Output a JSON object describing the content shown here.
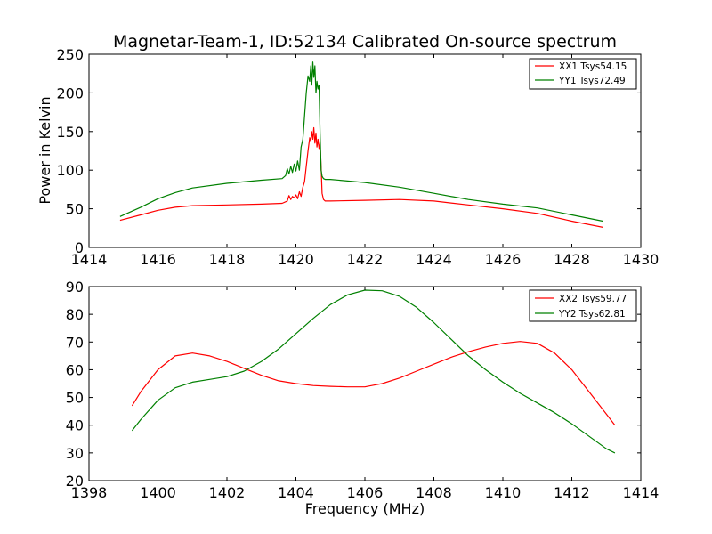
{
  "chart_data": [
    {
      "type": "line",
      "title": "Magnetar-Team-1, ID:52134 Calibrated On-source spectrum",
      "xlabel": "",
      "ylabel": "Power in Kelvin",
      "xlim": [
        1414,
        1430
      ],
      "ylim": [
        0,
        250
      ],
      "xticks": [
        1414,
        1416,
        1418,
        1420,
        1422,
        1424,
        1426,
        1428,
        1430
      ],
      "yticks": [
        0,
        50,
        100,
        150,
        200,
        250
      ],
      "grid": false,
      "legend_position": "top-right",
      "series": [
        {
          "name": "XX1 Tsys54.15",
          "color": "#ff0000",
          "x": [
            1414.9,
            1415.5,
            1416.0,
            1416.5,
            1417.0,
            1418.0,
            1419.0,
            1419.6,
            1419.75,
            1419.8,
            1419.85,
            1419.9,
            1419.95,
            1420.0,
            1420.05,
            1420.1,
            1420.15,
            1420.2,
            1420.25,
            1420.3,
            1420.35,
            1420.4,
            1420.43,
            1420.46,
            1420.49,
            1420.52,
            1420.55,
            1420.58,
            1420.61,
            1420.64,
            1420.67,
            1420.7,
            1420.73,
            1420.76,
            1420.8,
            1420.85,
            1421.0,
            1422.0,
            1423.0,
            1424.0,
            1425.0,
            1426.0,
            1427.0,
            1428.0,
            1428.9
          ],
          "values": [
            35,
            42,
            48,
            52,
            54,
            55,
            56,
            57,
            60,
            67,
            62,
            66,
            64,
            68,
            63,
            72,
            66,
            78,
            85,
            105,
            125,
            142,
            138,
            150,
            140,
            155,
            135,
            148,
            130,
            140,
            128,
            135,
            105,
            70,
            62,
            60,
            60,
            61,
            62,
            60,
            55,
            50,
            44,
            34,
            26
          ]
        },
        {
          "name": "YY1 Tsys72.49",
          "color": "#008000",
          "x": [
            1414.9,
            1415.5,
            1416.0,
            1416.5,
            1417.0,
            1418.0,
            1419.0,
            1419.6,
            1419.7,
            1419.75,
            1419.8,
            1419.85,
            1419.9,
            1419.95,
            1420.0,
            1420.05,
            1420.1,
            1420.15,
            1420.2,
            1420.25,
            1420.3,
            1420.35,
            1420.4,
            1420.43,
            1420.46,
            1420.49,
            1420.52,
            1420.55,
            1420.58,
            1420.61,
            1420.64,
            1420.67,
            1420.7,
            1420.73,
            1420.76,
            1420.8,
            1420.85,
            1421.0,
            1422.0,
            1423.0,
            1424.0,
            1425.0,
            1426.0,
            1427.0,
            1428.0,
            1428.9
          ],
          "values": [
            40,
            52,
            63,
            71,
            77,
            83,
            87,
            89,
            93,
            102,
            95,
            105,
            97,
            108,
            99,
            112,
            100,
            130,
            140,
            170,
            200,
            222,
            215,
            235,
            210,
            240,
            220,
            235,
            200,
            215,
            205,
            210,
            150,
            100,
            92,
            89,
            88,
            88,
            84,
            78,
            70,
            62,
            56,
            51,
            42,
            34
          ]
        }
      ]
    },
    {
      "type": "line",
      "title": "",
      "xlabel": "Frequency (MHz)",
      "ylabel": "",
      "xlim": [
        1398,
        1414
      ],
      "ylim": [
        20,
        90
      ],
      "xticks": [
        1398,
        1400,
        1402,
        1404,
        1406,
        1408,
        1410,
        1412,
        1414
      ],
      "yticks": [
        20,
        30,
        40,
        50,
        60,
        70,
        80,
        90
      ],
      "grid": false,
      "legend_position": "top-right",
      "series": [
        {
          "name": "XX2 Tsys59.77",
          "color": "#ff0000",
          "x": [
            1399.25,
            1399.5,
            1400.0,
            1400.5,
            1401.0,
            1401.5,
            1402.0,
            1402.5,
            1403.0,
            1403.5,
            1404.0,
            1404.5,
            1405.0,
            1405.5,
            1406.0,
            1406.2,
            1406.5,
            1407.0,
            1407.5,
            1408.0,
            1408.5,
            1409.0,
            1409.5,
            1410.0,
            1410.5,
            1411.0,
            1411.5,
            1412.0,
            1412.5,
            1413.0,
            1413.25
          ],
          "values": [
            47,
            52,
            60,
            65,
            66,
            65,
            63,
            60.5,
            58,
            56,
            55,
            54.3,
            54,
            53.8,
            53.8,
            54.3,
            55,
            57,
            59.5,
            62,
            64.5,
            66.5,
            68.2,
            69.5,
            70.2,
            69.5,
            66,
            60,
            52,
            44,
            40
          ]
        },
        {
          "name": "YY2 Tsys62.81",
          "color": "#008000",
          "x": [
            1399.25,
            1399.5,
            1400.0,
            1400.5,
            1401.0,
            1401.5,
            1402.0,
            1402.5,
            1403.0,
            1403.5,
            1404.0,
            1404.5,
            1405.0,
            1405.5,
            1406.0,
            1406.5,
            1407.0,
            1407.5,
            1408.0,
            1408.5,
            1409.0,
            1409.5,
            1410.0,
            1410.5,
            1411.0,
            1411.5,
            1412.0,
            1412.5,
            1413.0,
            1413.25
          ],
          "values": [
            38,
            42,
            49,
            53.5,
            55.5,
            56.5,
            57.5,
            59.5,
            63,
            67.5,
            73,
            78.5,
            83.5,
            87,
            88.7,
            88.5,
            86.5,
            82.5,
            77,
            71,
            65,
            60,
            55.5,
            51.5,
            48,
            44.5,
            40.5,
            36,
            31.5,
            30
          ]
        }
      ]
    }
  ]
}
